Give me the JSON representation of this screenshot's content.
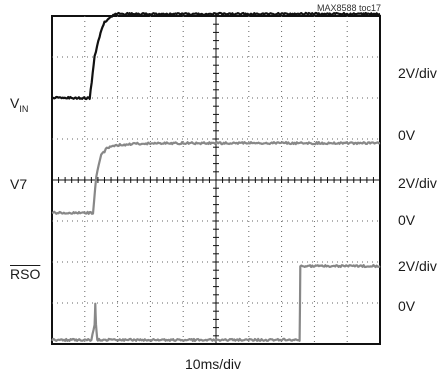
{
  "figure_id": "MAX8588 toc17",
  "chart_data": {
    "type": "line",
    "xlabel": "10ms/div",
    "x_divisions": 10,
    "y_divisions": 8,
    "grid": true,
    "traces": [
      {
        "label_main": "V",
        "label_sub": "IN",
        "scale": "2V/div",
        "zero_label": "0V",
        "color": "#111111",
        "baseline_div": 6.0,
        "x": [
          0.0,
          1.15,
          1.3,
          1.45,
          1.6,
          1.8,
          2.0,
          2.5,
          10.0
        ],
        "y": [
          0.0,
          0.0,
          1.0,
          1.5,
          1.85,
          2.0,
          2.05,
          2.05,
          2.05
        ]
      },
      {
        "label_main": "V7",
        "label_sub": "",
        "scale": "2V/div",
        "zero_label": "0V",
        "color": "#888888",
        "baseline_div": 3.2,
        "x": [
          0.0,
          1.25,
          1.35,
          1.5,
          1.7,
          2.0,
          2.5,
          3.0,
          10.0
        ],
        "y": [
          0.0,
          0.0,
          0.9,
          1.4,
          1.6,
          1.65,
          1.68,
          1.7,
          1.7
        ]
      },
      {
        "label_main": "RSO",
        "label_sub": "",
        "overline": true,
        "scale": "2V/div",
        "zero_label": "0V",
        "color": "#888888",
        "baseline_div": 0.1,
        "x": [
          0.0,
          1.2,
          1.3,
          1.32,
          1.34,
          1.38,
          1.4,
          7.55,
          7.57,
          10.0
        ],
        "y": [
          0.0,
          0.0,
          0.35,
          0.9,
          0.35,
          0.0,
          0.0,
          0.0,
          1.8,
          1.8
        ]
      }
    ]
  }
}
